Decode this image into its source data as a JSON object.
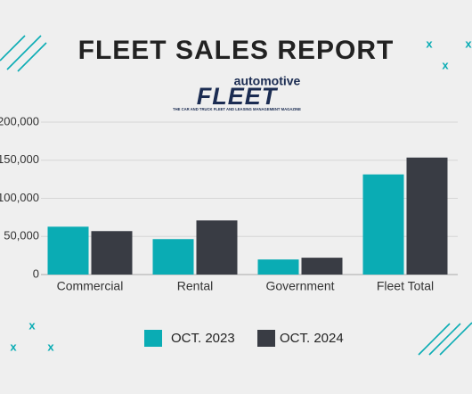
{
  "logo": {
    "top": "automotive",
    "main": "FLEET",
    "tagline": "THE CAR AND TRUCK FLEET AND LEASING MANAGEMENT MAGAZINE"
  },
  "chart_data": {
    "type": "bar",
    "title": "FLEET SALES REPORT",
    "categories": [
      "Commercial",
      "Rental",
      "Government",
      "Fleet Total"
    ],
    "series": [
      {
        "name": "OCT. 2023",
        "color": "#0aacb4",
        "values": [
          62800,
          46500,
          19800,
          131400
        ]
      },
      {
        "name": "OCT. 2024",
        "color": "#393c44",
        "values": [
          57000,
          71000,
          22100,
          153500
        ]
      }
    ],
    "ylim": [
      0,
      200000
    ],
    "yticks": [
      0,
      {
        "value": 50000,
        "label": "50,000"
      },
      {
        "value": 100000,
        "label": "100,000"
      },
      {
        "value": 150000,
        "label": "150,000"
      },
      {
        "value": 200000,
        "label": "200,000"
      }
    ],
    "grid": true,
    "legend": "bottom"
  }
}
